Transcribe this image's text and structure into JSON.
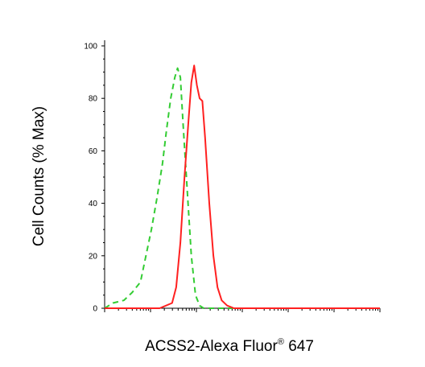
{
  "chart_data": {
    "type": "line",
    "title": "",
    "xlabel": "ACSS2-Alexa Fluor",
    "xlabel_superscript": "®",
    "xlabel_suffix": " 647",
    "ylabel": "Cell Counts (% Max)",
    "ylim": [
      0,
      100
    ],
    "y_ticks": [
      0,
      20,
      40,
      60,
      80,
      100
    ],
    "x_scale": "log",
    "x_tick_labels": "none",
    "grid": false,
    "legend": "none",
    "series": [
      {
        "color": "#33cc33",
        "style": "dashed",
        "points": [
          [
            0.0,
            0
          ],
          [
            0.03,
            2
          ],
          [
            0.07,
            3
          ],
          [
            0.1,
            6
          ],
          [
            0.13,
            10
          ],
          [
            0.15,
            20
          ],
          [
            0.17,
            30
          ],
          [
            0.19,
            42
          ],
          [
            0.21,
            55
          ],
          [
            0.225,
            68
          ],
          [
            0.24,
            80
          ],
          [
            0.255,
            88
          ],
          [
            0.265,
            91.5
          ],
          [
            0.275,
            88
          ],
          [
            0.285,
            70
          ],
          [
            0.3,
            45
          ],
          [
            0.315,
            20
          ],
          [
            0.33,
            5
          ],
          [
            0.345,
            1
          ],
          [
            0.36,
            0
          ],
          [
            1.0,
            0
          ]
        ]
      },
      {
        "color": "#ff2020",
        "style": "solid",
        "points": [
          [
            0.0,
            0
          ],
          [
            0.2,
            0
          ],
          [
            0.245,
            2
          ],
          [
            0.26,
            8
          ],
          [
            0.275,
            25
          ],
          [
            0.29,
            50
          ],
          [
            0.305,
            72
          ],
          [
            0.315,
            86
          ],
          [
            0.325,
            92.5
          ],
          [
            0.335,
            85
          ],
          [
            0.345,
            80
          ],
          [
            0.355,
            79
          ],
          [
            0.365,
            65
          ],
          [
            0.38,
            40
          ],
          [
            0.395,
            20
          ],
          [
            0.41,
            8
          ],
          [
            0.425,
            3
          ],
          [
            0.445,
            1
          ],
          [
            0.47,
            0
          ],
          [
            1.0,
            0
          ]
        ]
      }
    ]
  }
}
